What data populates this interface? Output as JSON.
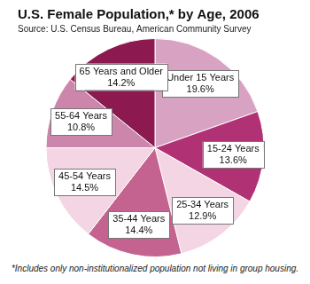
{
  "chart_data": {
    "type": "pie",
    "title": "U.S. Female Population,* by Age, 2006",
    "subtitle": "Source: U.S. Census Bureau, American Community Survey",
    "categories": [
      "Under 15 Years",
      "15-24 Years",
      "25-34 Years",
      "35-44 Years",
      "45-54 Years",
      "55-64 Years",
      "65 Years and Older"
    ],
    "values": [
      19.6,
      13.6,
      12.9,
      14.4,
      14.5,
      10.8,
      14.2
    ],
    "value_labels": [
      "19.6%",
      "13.6%",
      "12.9%",
      "14.4%",
      "14.5%",
      "10.8%",
      "14.2%"
    ],
    "colors": [
      "#d8a2c3",
      "#b03275",
      "#f3d5e4",
      "#c4638f",
      "#f3d5e4",
      "#cc85ab",
      "#8c1a50"
    ],
    "data_labels": true,
    "note": "*Includes only non-institutionalized population not living in group housing."
  }
}
